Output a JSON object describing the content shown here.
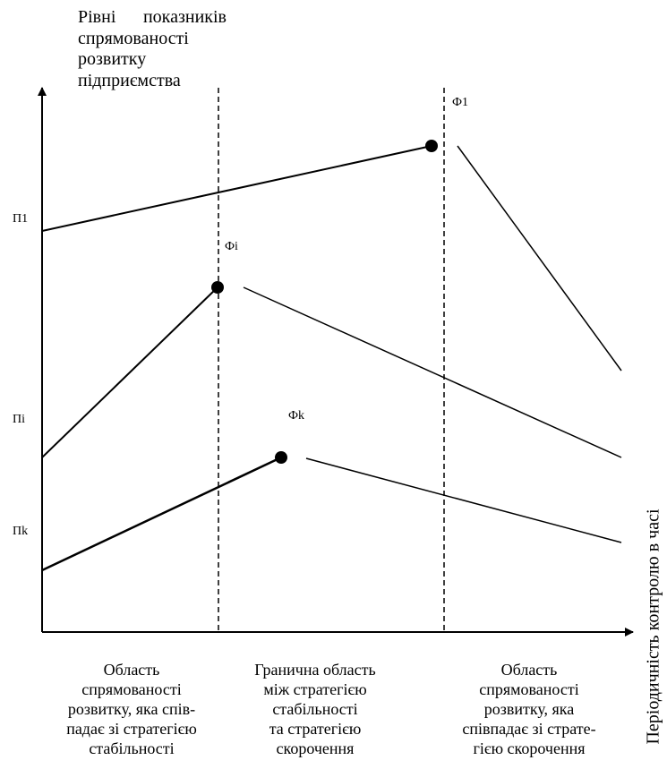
{
  "y_axis": {
    "title_lines": [
      "Рівні показників",
      "спрямованості",
      "розвитку",
      "підприємства"
    ],
    "level_labels": [
      "П1",
      "Пі",
      "Пk"
    ]
  },
  "x_axis": {
    "title": "Періодичність контролю в часі"
  },
  "points": [
    {
      "label": "Ф1"
    },
    {
      "label": "Фі"
    },
    {
      "label": "Фk"
    }
  ],
  "regions": [
    {
      "lines": [
        "Область",
        "спрямованості",
        "розвитку, яка спів-",
        "падає зі стратегією",
        "стабільності"
      ]
    },
    {
      "lines": [
        "Гранична область",
        "між стратегією",
        "стабільності",
        "та стратегією",
        "скорочення"
      ]
    },
    {
      "lines": [
        "Область",
        "спрямованості",
        "розвитку, яка",
        "співпадає зі страте-",
        "гією скорочення"
      ]
    }
  ]
}
